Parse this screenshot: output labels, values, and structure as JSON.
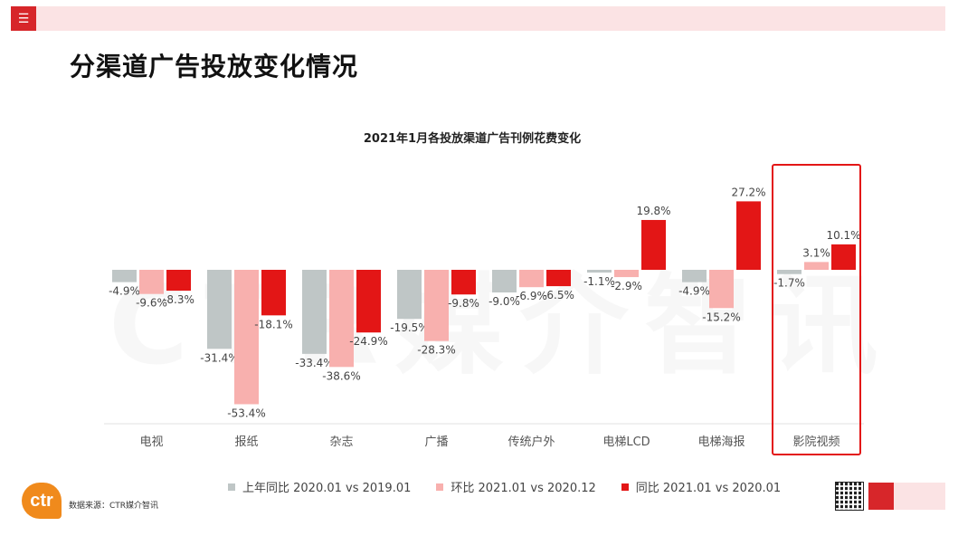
{
  "header": {
    "menu_icon": "menu-icon",
    "page_title": "分渠道广告投放变化情况"
  },
  "watermark": "CTR媒介智讯",
  "chart_data": {
    "type": "bar",
    "title": "2021年1月各投放渠道广告刊例花费变化",
    "categories": [
      "电视",
      "报纸",
      "杂志",
      "广播",
      "传统户外",
      "电梯LCD",
      "电梯海报",
      "影院视频"
    ],
    "series": [
      {
        "name": "上年同比 2020.01 vs 2019.01",
        "color": "#bfc6c6",
        "values": [
          -4.9,
          -31.4,
          -33.4,
          -19.5,
          -9.0,
          -1.1,
          -4.9,
          -1.7
        ]
      },
      {
        "name": "环比 2021.01 vs 2020.12",
        "color": "#f8b0ae",
        "values": [
          -9.6,
          -53.4,
          -38.6,
          -28.3,
          -6.9,
          -2.9,
          -15.2,
          3.1
        ]
      },
      {
        "name": "同比 2021.01 vs 2020.01",
        "color": "#e31616",
        "values": [
          -8.3,
          -18.1,
          -24.9,
          -9.8,
          -6.5,
          19.8,
          27.2,
          10.1
        ]
      }
    ],
    "highlighted_category": "影院视频",
    "ylim": [
      -60,
      30
    ],
    "grid": false,
    "legend_position": "bottom"
  },
  "footer": {
    "logo_text": "ctr",
    "source": "数据来源：CTR媒介智讯"
  }
}
